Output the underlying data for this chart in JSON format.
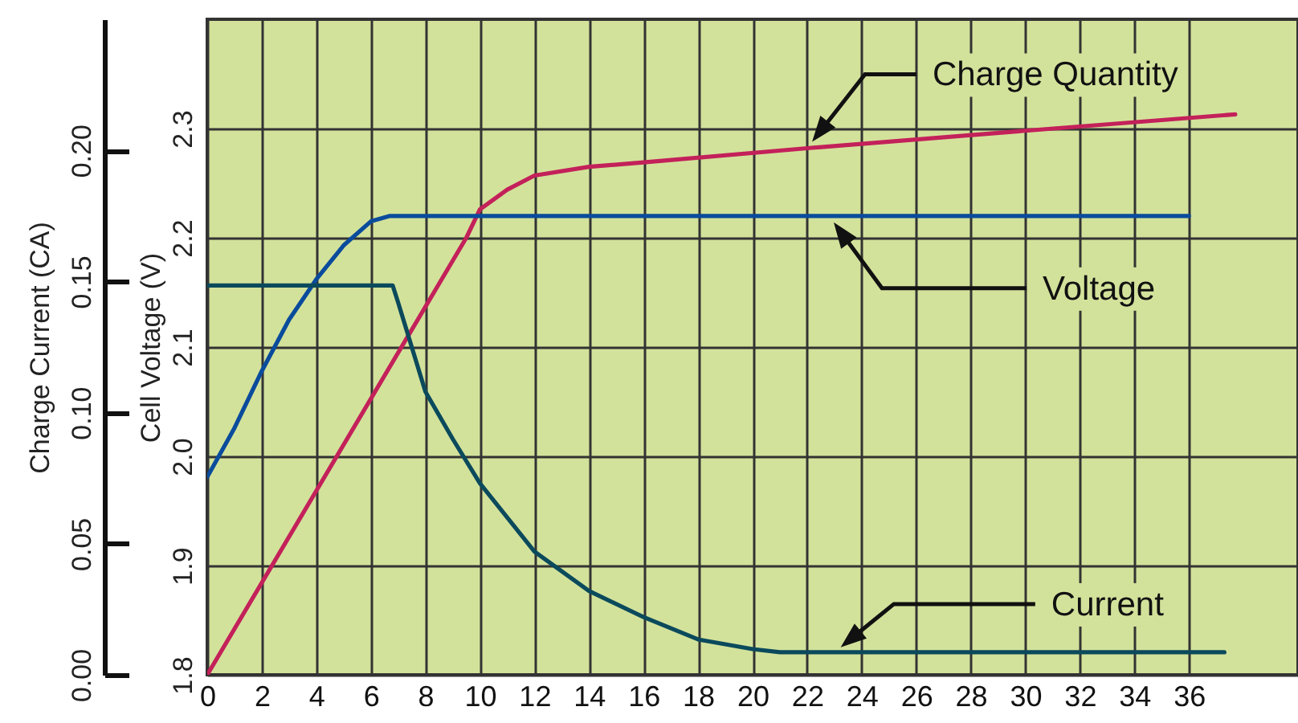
{
  "chart_data": {
    "type": "line",
    "xlim": [
      0,
      40
    ],
    "xticks": [
      0,
      2,
      4,
      6,
      8,
      10,
      12,
      14,
      16,
      18,
      20,
      22,
      24,
      26,
      28,
      30,
      32,
      34,
      36
    ],
    "ylabel": "Cell Voltage (V)",
    "ylim": [
      1.8,
      2.4
    ],
    "yticks": [
      {
        "value": 1.8,
        "label": "1.8"
      },
      {
        "value": 1.9,
        "label": "1.9"
      },
      {
        "value": 2.0,
        "label": "2.0"
      },
      {
        "value": 2.1,
        "label": "2.1"
      },
      {
        "value": 2.2,
        "label": "2.2"
      },
      {
        "value": 2.3,
        "label": "2.3"
      }
    ],
    "y2label": "Charge Current (CA)",
    "y2lim": [
      0,
      0.25
    ],
    "y2ticks": [
      {
        "value": 0,
        "label": "0.00"
      },
      {
        "value": 0.05,
        "label": "0.05"
      },
      {
        "value": 0.1,
        "label": "0.10"
      },
      {
        "value": 0.15,
        "label": "0.15"
      },
      {
        "value": 0.2,
        "label": "0.20"
      }
    ],
    "grid": true,
    "series": [
      {
        "name": "Charge Quantity",
        "color": "#c3215a",
        "axis": "y",
        "x": [
          0,
          9.5,
          10,
          11,
          12,
          14,
          16,
          22,
          30,
          37.7
        ],
        "values": [
          1.8,
          2.2,
          2.226,
          2.244,
          2.257,
          2.265,
          2.269,
          2.282,
          2.298,
          2.313
        ]
      },
      {
        "name": "Voltage",
        "color": "#0a4c9c",
        "axis": "y",
        "x": [
          0,
          1,
          2,
          3,
          4,
          5,
          6,
          6.7,
          36
        ],
        "values": [
          1.981,
          2.026,
          2.078,
          2.125,
          2.162,
          2.193,
          2.215,
          2.22,
          2.22
        ]
      },
      {
        "name": "Current",
        "color": "#0b4a5c",
        "axis": "y2",
        "x": [
          0,
          6.8,
          7,
          8,
          9,
          10,
          12,
          14,
          16,
          18,
          20,
          21,
          37.3
        ],
        "values": [
          0.1485,
          0.1485,
          0.142,
          0.108,
          0.09,
          0.073,
          0.047,
          0.032,
          0.022,
          0.0135,
          0.0098,
          0.0086,
          0.0086
        ]
      }
    ]
  }
}
